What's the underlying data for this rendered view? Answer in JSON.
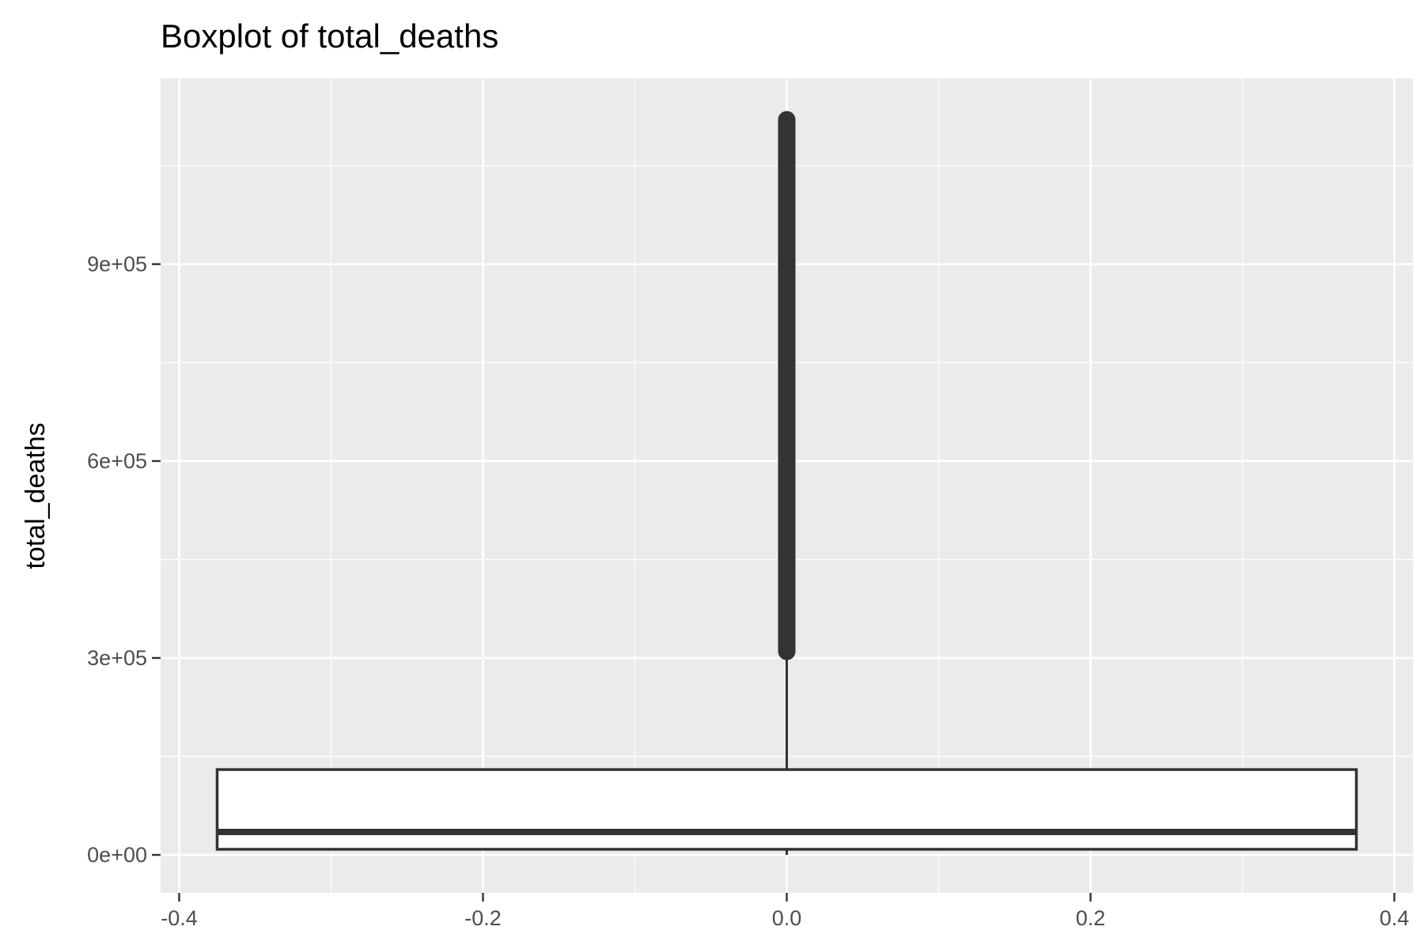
{
  "chart_data": {
    "type": "boxplot",
    "title": "Boxplot of total_deaths",
    "xlabel": "",
    "ylabel": "total_deaths",
    "xlim": [
      -0.4,
      0.4
    ],
    "ylim": [
      0,
      1120000
    ],
    "x_ticks": [
      {
        "value": -0.4,
        "label": "-0.4"
      },
      {
        "value": -0.2,
        "label": "-0.2"
      },
      {
        "value": 0.0,
        "label": "0.0"
      },
      {
        "value": 0.2,
        "label": "0.2"
      },
      {
        "value": 0.4,
        "label": "0.4"
      }
    ],
    "y_ticks": [
      {
        "value": 0,
        "label": "0e+00"
      },
      {
        "value": 300000,
        "label": "3e+05"
      },
      {
        "value": 600000,
        "label": "6e+05"
      },
      {
        "value": 900000,
        "label": "9e+05"
      }
    ],
    "grid": true,
    "box": {
      "x": 0.0,
      "x_min": -0.375,
      "x_max": 0.375,
      "whisker_low": 0,
      "q1": 8500,
      "median": 35000,
      "q3": 130000,
      "whisker_high": 310000,
      "outliers_from": 310000,
      "outliers_to": 1120000
    },
    "colors": {
      "panel": "#ebebeb",
      "grid": "#ffffff",
      "box_fill": "#ffffff",
      "line": "#333333",
      "tick_text": "#4d4d4d"
    }
  }
}
